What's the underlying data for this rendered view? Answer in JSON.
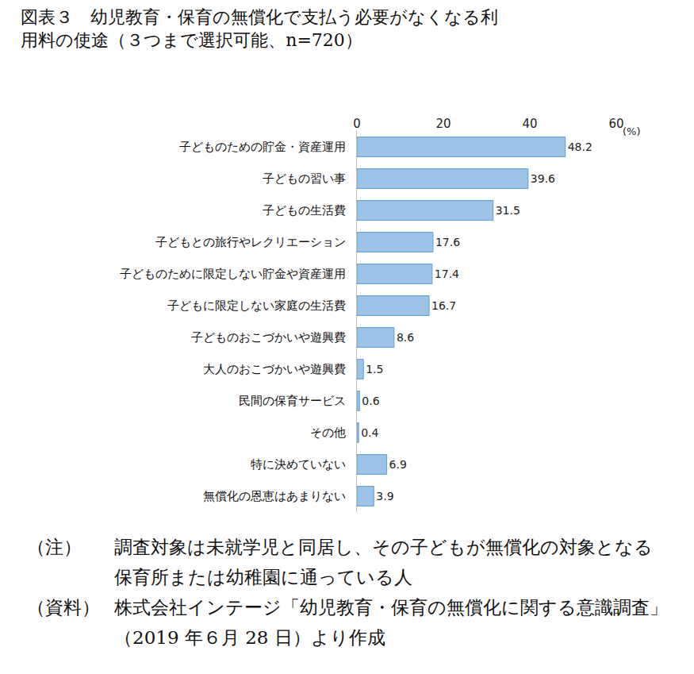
{
  "chart_data": {
    "type": "bar",
    "orientation": "horizontal",
    "title": "図表３　幼児教育・保育の無償化で支払う必要がなくなる利\n用料の使途（３つまで選択可能、n=720）",
    "xlabel": "(%)",
    "categories": [
      "子どものための貯金・資産運用",
      "子どもの習い事",
      "子どもの生活費",
      "子どもとの旅行やレクリエーション",
      "子どものために限定しない貯金や資産運用",
      "子どもに限定しない家庭の生活費",
      "子どものおこづかいや遊興費",
      "大人のおこづかいや遊興費",
      "民間の保育サービス",
      "その他",
      "特に決めていない",
      "無償化の恩恵はあまりない"
    ],
    "values": [
      48.2,
      39.6,
      31.5,
      17.6,
      17.4,
      16.7,
      8.6,
      1.5,
      0.6,
      0.4,
      6.9,
      3.9
    ],
    "color": "#9dc3e6",
    "xlim": [
      0,
      60
    ],
    "xticks": [
      0,
      20,
      40,
      60
    ],
    "grid": false,
    "data_labels": true,
    "notes": [
      {
        "label": "（注）",
        "text": "調査対象は未就学児と同居し、その子どもが無償化の対象となる保育所または幼稚園に通っている人"
      },
      {
        "label": "（資料）",
        "text": "株式会社インテージ「幼児教育・保育の無償化に関する意識調査」（2019 年６月 28 日）より作成"
      }
    ]
  }
}
